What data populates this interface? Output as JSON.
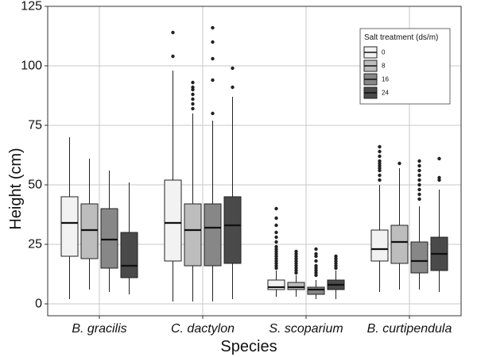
{
  "chart_data": {
    "type": "box",
    "xlabel": "Species",
    "ylabel": "Height (cm)",
    "ylim": [
      -5,
      125
    ],
    "yticks": [
      0,
      25,
      50,
      75,
      100,
      125
    ],
    "grid": true,
    "categories": [
      "B. gracilis",
      "C. dactylon",
      "S. scoparium",
      "B. curtipendula"
    ],
    "legend": {
      "title": "Salt treatment (ds/m)",
      "position": "top-right",
      "entries": [
        {
          "label": "0",
          "color": "#f2f2f2"
        },
        {
          "label": "8",
          "color": "#bdbdbd"
        },
        {
          "label": "16",
          "color": "#878787"
        },
        {
          "label": "24",
          "color": "#4a4a4a"
        }
      ]
    },
    "series": [
      {
        "treatment": "0",
        "color": "#f2f2f2",
        "boxes": [
          {
            "category": "B. gracilis",
            "min": 2,
            "q1": 20,
            "median": 34,
            "q3": 45,
            "max": 70,
            "outliers": []
          },
          {
            "category": "C. dactylon",
            "min": 1,
            "q1": 18,
            "median": 34,
            "q3": 52,
            "max": 98,
            "outliers": [
              104,
              114
            ]
          },
          {
            "category": "S. scoparium",
            "min": 3,
            "q1": 6,
            "median": 7,
            "q3": 10,
            "max": 14,
            "outliers": [
              15,
              16,
              17,
              18,
              19,
              20,
              21,
              22,
              23,
              24,
              26,
              28,
              30,
              33,
              36,
              40
            ]
          },
          {
            "category": "B. curtipendula",
            "min": 5,
            "q1": 18,
            "median": 23,
            "q3": 31,
            "max": 50,
            "outliers": [
              52,
              54,
              56,
              57,
              58,
              59,
              60,
              62,
              64,
              66
            ]
          }
        ]
      },
      {
        "treatment": "8",
        "color": "#bdbdbd",
        "boxes": [
          {
            "category": "B. gracilis",
            "min": 6,
            "q1": 19,
            "median": 31,
            "q3": 42,
            "max": 61,
            "outliers": []
          },
          {
            "category": "C. dactylon",
            "min": 1,
            "q1": 16,
            "median": 31,
            "q3": 42,
            "max": 80,
            "outliers": [
              82,
              84,
              86,
              88,
              90,
              91,
              93
            ]
          },
          {
            "category": "S. scoparium",
            "min": 3,
            "q1": 6,
            "median": 7,
            "q3": 9,
            "max": 12,
            "outliers": [
              13,
              14,
              15,
              16,
              17,
              18,
              19,
              20,
              21,
              22
            ]
          },
          {
            "category": "B. curtipendula",
            "min": 6,
            "q1": 17,
            "median": 26,
            "q3": 33,
            "max": 57,
            "outliers": [
              59
            ]
          }
        ]
      },
      {
        "treatment": "16",
        "color": "#878787",
        "boxes": [
          {
            "category": "B. gracilis",
            "min": 5,
            "q1": 15,
            "median": 27,
            "q3": 40,
            "max": 56,
            "outliers": []
          },
          {
            "category": "C. dactylon",
            "min": 1,
            "q1": 16,
            "median": 32,
            "q3": 42,
            "max": 77,
            "outliers": [
              80,
              94,
              103,
              110,
              116
            ]
          },
          {
            "category": "S. scoparium",
            "min": 2,
            "q1": 4,
            "median": 6,
            "q3": 7,
            "max": 10,
            "outliers": [
              12,
              13,
              14,
              15,
              16,
              18,
              20,
              21,
              23
            ]
          },
          {
            "category": "B. curtipendula",
            "min": 6,
            "q1": 13,
            "median": 18,
            "q3": 26,
            "max": 41,
            "outliers": [
              44,
              46,
              48,
              50,
              52,
              54,
              56,
              58,
              60
            ]
          }
        ]
      },
      {
        "treatment": "24",
        "color": "#4a4a4a",
        "boxes": [
          {
            "category": "B. gracilis",
            "min": 4,
            "q1": 11,
            "median": 16,
            "q3": 30,
            "max": 51,
            "outliers": []
          },
          {
            "category": "C. dactylon",
            "min": 2,
            "q1": 17,
            "median": 33,
            "q3": 45,
            "max": 87,
            "outliers": [
              91,
              99
            ]
          },
          {
            "category": "S. scoparium",
            "min": 2,
            "q1": 6,
            "median": 8,
            "q3": 10,
            "max": 14,
            "outliers": [
              15,
              16,
              17,
              18,
              19,
              20
            ]
          },
          {
            "category": "B. curtipendula",
            "min": 5,
            "q1": 14,
            "median": 21,
            "q3": 28,
            "max": 48,
            "outliers": [
              52,
              53,
              61
            ]
          }
        ]
      }
    ]
  }
}
